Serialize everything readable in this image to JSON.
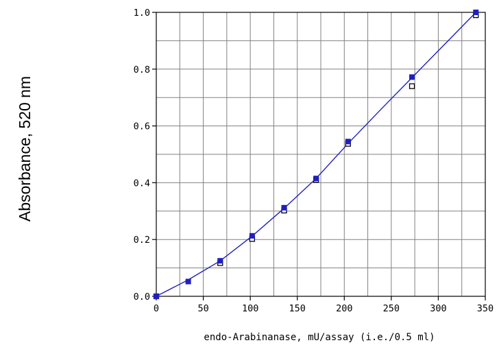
{
  "chart_data": {
    "type": "scatter",
    "title": "",
    "xlabel": "endo-Arabinanase,  mU/assay (i.e./0.5 ml)",
    "ylabel": "Absorbance,   520 nm",
    "xlim": [
      0,
      350
    ],
    "ylim": [
      0,
      1.0
    ],
    "x_ticks": [
      "0",
      "50",
      "100",
      "150",
      "200",
      "250",
      "300",
      "350"
    ],
    "y_ticks": [
      "0.0",
      "0.2",
      "0.4",
      "0.6",
      "0.8",
      "1.0"
    ],
    "x_grid_step": 25,
    "y_grid_step": 0.1,
    "grid": true,
    "colors": {
      "fit_line": "#1f1fbf",
      "filled_marker": "#1f1fbf",
      "open_marker": "#000000",
      "grid": "#808080"
    },
    "series": [
      {
        "marker": "filled-square",
        "x": [
          0,
          34,
          68,
          102,
          136,
          170,
          204,
          272,
          340
        ],
        "y": [
          0.0,
          0.052,
          0.125,
          0.213,
          0.312,
          0.415,
          0.545,
          0.772,
          1.0
        ]
      },
      {
        "marker": "open-square",
        "x": [
          0,
          68,
          102,
          136,
          170,
          204,
          272,
          340
        ],
        "y": [
          0.0,
          0.117,
          0.202,
          0.302,
          0.41,
          0.537,
          0.74,
          0.99
        ]
      },
      {
        "marker": "line",
        "x": [
          0,
          34,
          68,
          102,
          136,
          170,
          204,
          238,
          272,
          306,
          340
        ],
        "y": [
          0.0,
          0.058,
          0.125,
          0.212,
          0.31,
          0.415,
          0.538,
          0.655,
          0.77,
          0.885,
          1.0
        ]
      }
    ]
  }
}
